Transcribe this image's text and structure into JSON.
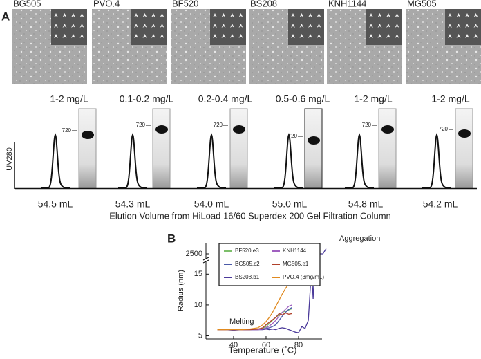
{
  "panel_a": {
    "label": "A",
    "samples": [
      "BG505",
      "PVO.4",
      "BF520",
      "BS208",
      "KNH1144",
      "MG505"
    ],
    "concentrations": [
      "1-2 mg/L",
      "0.1-0.2 mg/L",
      "0.2-0.4 mg/L",
      "0.5-0.6 mg/L",
      "1-2 mg/L",
      "1-2 mg/L"
    ],
    "elution_volumes": [
      "54.5 mL",
      "54.3 mL",
      "54.0 mL",
      "55.0 mL",
      "54.8 mL",
      "54.2 mL"
    ],
    "marker_label": "720",
    "y_axis_label": "UV280",
    "x_axis_label": "Elution Volume from HiLoad 16/60 Superdex 200 Gel Filtration Column"
  },
  "chart_data": {
    "type": "line",
    "panel_label": "B",
    "x_label": "Temperature (˚C)",
    "y_label": "Radius (nm)",
    "x": [
      30,
      35,
      40,
      45,
      50,
      55,
      58,
      60,
      62,
      64,
      66,
      68,
      70,
      72,
      74,
      76,
      78,
      80,
      82,
      84,
      86,
      88,
      89,
      90,
      91,
      92,
      93,
      95,
      97
    ],
    "xlim": [
      23,
      100
    ],
    "xticks": [
      40,
      60,
      80
    ],
    "ylim": [
      4.5,
      17.5
    ],
    "yticks": [
      5,
      10,
      15
    ],
    "y2lim": [
      2400,
      2600
    ],
    "y2ticks": [
      2500
    ],
    "series": [
      {
        "name": "BF520.e3",
        "color": "#7cbf6a",
        "values": [
          6,
          6,
          6.1,
          6,
          6,
          6.1,
          6.2,
          6.5,
          7,
          7.5,
          8,
          8.4,
          8.8,
          9,
          9.2,
          9.4,
          null,
          null,
          null,
          null,
          null,
          null,
          null,
          null,
          null,
          null,
          null,
          null,
          null
        ]
      },
      {
        "name": "BG505.c2",
        "color": "#4a5aa8",
        "values": [
          6,
          6.1,
          6,
          6,
          6,
          6,
          6.1,
          6.2,
          6.3,
          6.5,
          6.8,
          7.5,
          8.2,
          8.8,
          9.3,
          9.6,
          null,
          null,
          null,
          null,
          null,
          null,
          null,
          null,
          null,
          null,
          null,
          null,
          null
        ]
      },
      {
        "name": "BS208.b1",
        "color": "#4b3a9a",
        "values": [
          6,
          6,
          5.9,
          6,
          6,
          6,
          6,
          6.1,
          6,
          6.1,
          6,
          6.2,
          6.3,
          6.2,
          6,
          5.8,
          5.6,
          5.5,
          6.5,
          6.2,
          7.5,
          16,
          11,
          17,
          15,
          2500,
          2500,
          2500,
          2550
        ]
      },
      {
        "name": "KNH1144",
        "color": "#a060c0",
        "values": [
          6,
          6,
          6,
          6,
          6,
          6,
          6.1,
          6.3,
          6.6,
          7,
          7.5,
          8.2,
          8.8,
          9.3,
          9.8,
          10,
          null,
          null,
          null,
          null,
          null,
          null,
          null,
          null,
          null,
          null,
          null,
          null,
          null
        ]
      },
      {
        "name": "MG505.e1",
        "color": "#b0402a",
        "values": [
          6,
          6,
          6.1,
          6,
          6,
          6.1,
          6.3,
          6.8,
          7.2,
          7.6,
          8,
          8.6,
          8.4,
          8.7,
          8.5,
          8.6,
          null,
          null,
          null,
          null,
          null,
          null,
          null,
          null,
          null,
          null,
          null,
          null,
          null
        ]
      },
      {
        "name": "PVO.4 (3mg/mL)",
        "color": "#e08a20",
        "values": [
          6,
          6,
          6,
          6,
          6.1,
          6.3,
          6.8,
          7.3,
          8,
          8.8,
          9.8,
          10.8,
          11.8,
          12.7,
          13.4,
          13.9,
          14.1,
          null,
          null,
          null,
          null,
          null,
          null,
          null,
          null,
          null,
          null,
          null,
          null
        ]
      }
    ],
    "annotations": [
      "Melting",
      "Aggregation"
    ]
  }
}
